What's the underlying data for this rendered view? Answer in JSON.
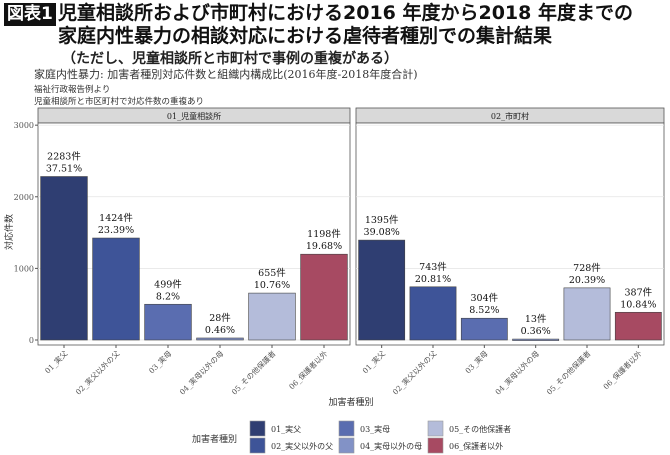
{
  "header": {
    "badge": "図表1",
    "title_line1": "児童相談所および市町村における2016 年度から2018 年度までの",
    "title_line2": "家庭内性暴力の相談対応における虐待者種別での集計結果",
    "title_note": "（ただし、児童相談所と市町村で事例の重複がある）"
  },
  "chart_data": {
    "type": "bar",
    "title": "家庭内性暴力: 加害者種別対応件数と組織内構成比(2016年度-2018年度合計)",
    "caption": [
      "福祉行政報告例より",
      "児童相談所と市区町村で対応件数の重複あり"
    ],
    "xlabel": "加害者種別",
    "ylabel": "対応件数",
    "ylim": [
      0,
      3000
    ],
    "yticks": [
      0,
      1000,
      2000,
      3000
    ],
    "grid": true,
    "categories": [
      "01_実父",
      "02_実父以外の父",
      "03_実母",
      "04_実母以外の母",
      "05_その他保護者",
      "06_保護者以外"
    ],
    "colors": [
      "#2f3e72",
      "#3e5498",
      "#5a6db0",
      "#8292c6",
      "#b4bcda",
      "#a74a62"
    ],
    "panels": [
      {
        "name": "01_児童相談所",
        "values": [
          2283,
          1424,
          499,
          28,
          655,
          1198
        ],
        "labels": [
          "2283件",
          "1424件",
          "499件",
          "28件",
          "655件",
          "1198件"
        ],
        "percents": [
          "37.51%",
          "23.39%",
          "8.2%",
          "0.46%",
          "10.76%",
          "19.68%"
        ]
      },
      {
        "name": "02_市町村",
        "values": [
          1395,
          743,
          304,
          13,
          728,
          387
        ],
        "labels": [
          "1395件",
          "743件",
          "304件",
          "13件",
          "728件",
          "387件"
        ],
        "percents": [
          "39.08%",
          "20.81%",
          "8.52%",
          "0.36%",
          "20.39%",
          "10.84%"
        ]
      }
    ],
    "legend": {
      "title": "加害者種別",
      "position": "bottom"
    }
  }
}
